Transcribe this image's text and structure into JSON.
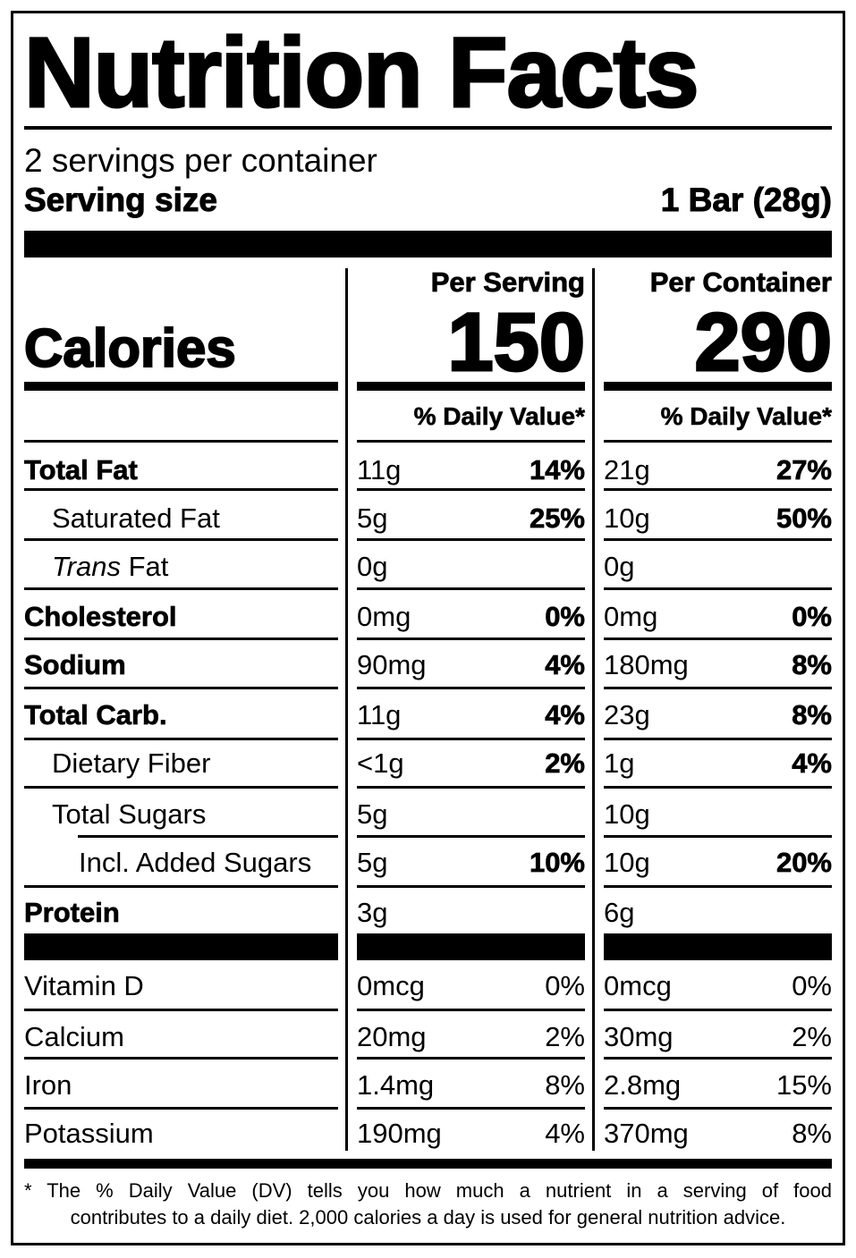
{
  "label": {
    "title": "Nutrition Facts",
    "servings_per_container": "2 servings per container",
    "serving_size_label": "Serving size",
    "serving_size_value": "1 Bar (28g)",
    "calories_label": "Calories",
    "columns": [
      {
        "header": "Per Serving",
        "calories": "150",
        "dv_header": "% Daily Value*"
      },
      {
        "header": "Per Container",
        "calories": "290",
        "dv_header": "% Daily Value*"
      }
    ],
    "nutrients": [
      {
        "name": "Total Fat",
        "style": "bold",
        "serving_amount": "11g",
        "serving_dv": "14%",
        "container_amount": "21g",
        "container_dv": "27%"
      },
      {
        "name": "Saturated Fat",
        "style": "indent",
        "serving_amount": "5g",
        "serving_dv": "25%",
        "container_amount": "10g",
        "container_dv": "50%"
      },
      {
        "name_italic": "Trans",
        "name": " Fat",
        "style": "indent",
        "serving_amount": "0g",
        "serving_dv": "",
        "container_amount": "0g",
        "container_dv": ""
      },
      {
        "name": "Cholesterol",
        "style": "bold",
        "serving_amount": "0mg",
        "serving_dv": "0%",
        "container_amount": "0mg",
        "container_dv": "0%"
      },
      {
        "name": "Sodium",
        "style": "bold",
        "serving_amount": "90mg",
        "serving_dv": "4%",
        "container_amount": "180mg",
        "container_dv": "8%"
      },
      {
        "name": "Total Carb.",
        "style": "bold",
        "serving_amount": "11g",
        "serving_dv": "4%",
        "container_amount": "23g",
        "container_dv": "8%"
      },
      {
        "name": "Dietary Fiber",
        "style": "indent",
        "serving_amount": "<1g",
        "serving_dv": "2%",
        "container_amount": "1g",
        "container_dv": "4%"
      },
      {
        "name": "Total Sugars",
        "style": "indent",
        "serving_amount": "5g",
        "serving_dv": "",
        "container_amount": "10g",
        "container_dv": ""
      },
      {
        "name": "Incl. Added Sugars",
        "style": "indent2",
        "serving_amount": "5g",
        "serving_dv": "10%",
        "container_amount": "10g",
        "container_dv": "20%"
      },
      {
        "name": "Protein",
        "style": "bold",
        "serving_amount": "3g",
        "serving_dv": "",
        "container_amount": "6g",
        "container_dv": ""
      }
    ],
    "vitamins": [
      {
        "name": "Vitamin D",
        "serving_amount": "0mcg",
        "serving_dv": "0%",
        "container_amount": "0mcg",
        "container_dv": "0%"
      },
      {
        "name": "Calcium",
        "serving_amount": "20mg",
        "serving_dv": "2%",
        "container_amount": "30mg",
        "container_dv": "2%"
      },
      {
        "name": "Iron",
        "serving_amount": "1.4mg",
        "serving_dv": "8%",
        "container_amount": "2.8mg",
        "container_dv": "15%"
      },
      {
        "name": "Potassium",
        "serving_amount": "190mg",
        "serving_dv": "4%",
        "container_amount": "370mg",
        "container_dv": "8%"
      }
    ],
    "footnote_line1": "* The % Daily Value (DV) tells you how much a nutrient in a serving of food",
    "footnote_line2": "contributes to a daily diet. 2,000 calories a day is used for general nutrition advice."
  }
}
